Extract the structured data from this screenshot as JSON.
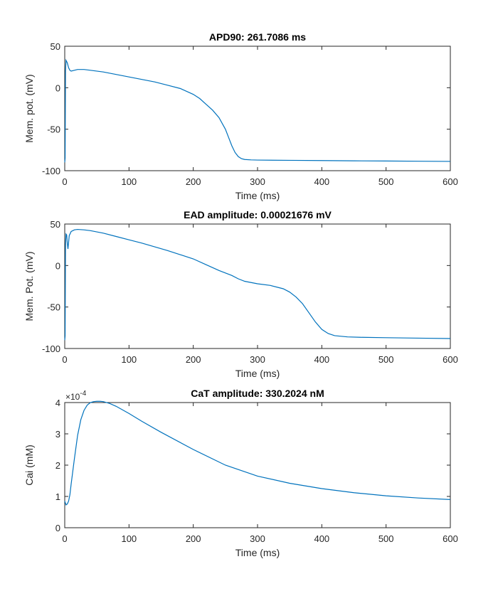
{
  "figure": {
    "background": "#ffffff",
    "line_color": "#0072BD"
  },
  "chart_data": [
    {
      "type": "line",
      "title": "APD90: 261.7086 ms",
      "xlabel": "Time (ms)",
      "ylabel": "Mem. pot. (mV)",
      "xlim": [
        0,
        600
      ],
      "ylim": [
        -100,
        50
      ],
      "xticks": [
        0,
        100,
        200,
        300,
        400,
        500,
        600
      ],
      "yticks": [
        -100,
        -50,
        0,
        50
      ],
      "xtick_labels": [
        "0",
        "100",
        "200",
        "300",
        "400",
        "500",
        "600"
      ],
      "ytick_labels": [
        "-100",
        "-50",
        "0",
        "50"
      ],
      "grid": false,
      "series": [
        {
          "x": [
            0,
            0.6,
            1.2,
            2,
            4,
            6,
            8,
            10,
            15,
            20,
            30,
            40,
            60,
            80,
            100,
            120,
            140,
            160,
            180,
            200,
            210,
            220,
            230,
            240,
            250,
            255,
            260,
            265,
            270,
            275,
            280,
            290,
            300,
            350,
            400,
            450,
            500,
            550,
            600
          ],
          "y": [
            -90,
            -85,
            20,
            33,
            30,
            24,
            21,
            20,
            21,
            22,
            22,
            21,
            19,
            16,
            13,
            10,
            7,
            3,
            -1,
            -8,
            -13,
            -20,
            -27,
            -36,
            -50,
            -60,
            -70,
            -78,
            -83,
            -85.5,
            -86.5,
            -87,
            -87.2,
            -87.5,
            -87.8,
            -88.1,
            -88.3,
            -88.6,
            -88.8
          ]
        }
      ]
    },
    {
      "type": "line",
      "title": "EAD amplitude: 0.00021676 mV",
      "xlabel": "Time (ms)",
      "ylabel": "Mem. Pot. (mV)",
      "xlim": [
        0,
        600
      ],
      "ylim": [
        -100,
        50
      ],
      "xticks": [
        0,
        100,
        200,
        300,
        400,
        500,
        600
      ],
      "yticks": [
        -100,
        -50,
        0,
        50
      ],
      "xtick_labels": [
        "0",
        "100",
        "200",
        "300",
        "400",
        "500",
        "600"
      ],
      "ytick_labels": [
        "-100",
        "-50",
        "0",
        "50"
      ],
      "grid": false,
      "series": [
        {
          "x": [
            0,
            0.6,
            1.2,
            2,
            3,
            4,
            5,
            7,
            10,
            15,
            20,
            30,
            40,
            60,
            80,
            100,
            120,
            140,
            160,
            180,
            200,
            220,
            240,
            260,
            270,
            280,
            300,
            320,
            340,
            350,
            360,
            370,
            380,
            390,
            400,
            410,
            420,
            440,
            460,
            500,
            550,
            600
          ],
          "y": [
            -90,
            -85,
            25,
            38,
            37,
            27,
            20,
            36,
            41,
            43,
            43.5,
            43,
            42,
            39,
            35,
            31,
            27,
            22.5,
            18,
            13,
            8,
            1,
            -6,
            -12,
            -16,
            -19,
            -22,
            -24,
            -28,
            -32,
            -38,
            -46,
            -57,
            -68,
            -77,
            -82,
            -84.5,
            -86,
            -86.5,
            -87,
            -87.5,
            -88
          ]
        }
      ]
    },
    {
      "type": "line",
      "title": "CaT amplitude: 330.2024 nM",
      "xlabel": "Time (ms)",
      "ylabel": "Cai (mM)",
      "exponent_label": "×10",
      "exponent_power": "-4",
      "xlim": [
        0,
        600
      ],
      "ylim": [
        0,
        4
      ],
      "xticks": [
        0,
        100,
        200,
        300,
        400,
        500,
        600
      ],
      "yticks": [
        0,
        1,
        2,
        3,
        4
      ],
      "xtick_labels": [
        "0",
        "100",
        "200",
        "300",
        "400",
        "500",
        "600"
      ],
      "ytick_labels": [
        "0",
        "1",
        "2",
        "3",
        "4"
      ],
      "grid": false,
      "series": [
        {
          "x": [
            0,
            2,
            4,
            6,
            8,
            10,
            15,
            20,
            25,
            30,
            35,
            40,
            45,
            50,
            55,
            60,
            70,
            80,
            100,
            120,
            150,
            200,
            250,
            300,
            350,
            400,
            450,
            500,
            550,
            600
          ],
          "y": [
            0.85,
            0.73,
            0.76,
            0.85,
            1.05,
            1.4,
            2.2,
            2.95,
            3.45,
            3.75,
            3.92,
            4.0,
            4.03,
            4.04,
            4.04,
            4.03,
            3.97,
            3.88,
            3.65,
            3.4,
            3.05,
            2.5,
            2.0,
            1.65,
            1.42,
            1.25,
            1.12,
            1.02,
            0.95,
            0.9
          ]
        }
      ]
    }
  ]
}
